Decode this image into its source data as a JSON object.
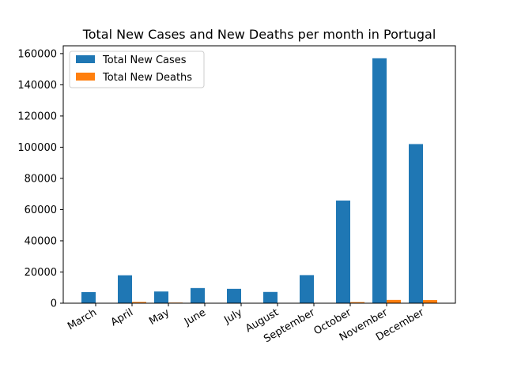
{
  "chart_data": {
    "type": "bar",
    "title": "Total New Cases and New Deaths per month in Portugal",
    "xlabel": "",
    "ylabel": "",
    "categories": [
      "March",
      "April",
      "May",
      "June",
      "July",
      "August",
      "September",
      "October",
      "November",
      "December"
    ],
    "series": [
      {
        "name": "Total New Cases",
        "color": "#1f77b4",
        "values": [
          7100,
          17900,
          7500,
          9700,
          9200,
          7200,
          18000,
          65800,
          157000,
          102000
        ]
      },
      {
        "name": "Total New Deaths",
        "color": "#ff7f0e",
        "values": [
          160,
          800,
          400,
          200,
          150,
          100,
          250,
          700,
          2100,
          2000
        ]
      }
    ],
    "ylim": [
      0,
      165000
    ],
    "yticks": [
      0,
      20000,
      40000,
      60000,
      80000,
      100000,
      120000,
      140000,
      160000
    ],
    "legend_position": "top-left",
    "grid": false
  }
}
